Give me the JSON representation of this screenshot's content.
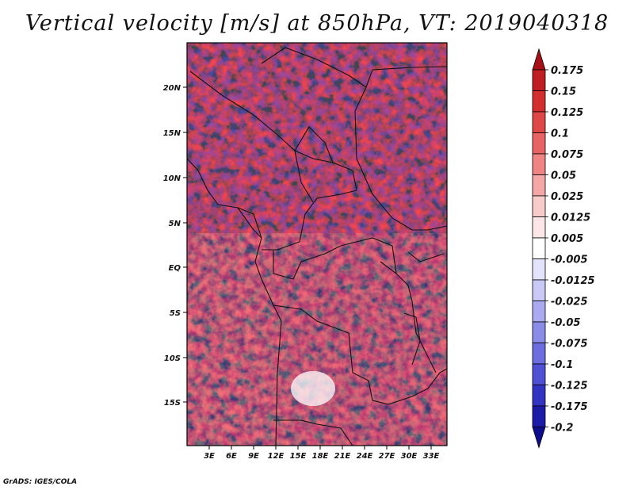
{
  "title": "Vertical velocity [m/s] at 850hPa, VT: 2019040318",
  "credit": "GrADS: IGES/COLA",
  "map": {
    "lat_ticks": [
      "20N",
      "15N",
      "10N",
      "5N",
      "EQ",
      "5S",
      "10S",
      "15S"
    ],
    "lon_ticks": [
      "3E",
      "6E",
      "9E",
      "12E",
      "15E",
      "18E",
      "21E",
      "24E",
      "27E",
      "30E",
      "33E"
    ]
  },
  "colorbar": {
    "labels": [
      "0.175",
      "0.15",
      "0.125",
      "0.1",
      "0.075",
      "0.05",
      "0.025",
      "0.0125",
      "0.005",
      "-0.005",
      "-0.0125",
      "-0.025",
      "-0.05",
      "-0.075",
      "-0.1",
      "-0.125",
      "-0.175",
      "-0.2"
    ],
    "colors": [
      "#a50f15",
      "#bf1e23",
      "#d42f2f",
      "#e04848",
      "#e86464",
      "#ef8484",
      "#f5a6a6",
      "#f9cccc",
      "#fde6e6",
      "#ffffff",
      "#e3e3fb",
      "#c9c9f6",
      "#aaaaf0",
      "#8b8be8",
      "#6d6de0",
      "#5050d4",
      "#3434c2",
      "#1b1ba8",
      "#0c0c8c"
    ]
  }
}
